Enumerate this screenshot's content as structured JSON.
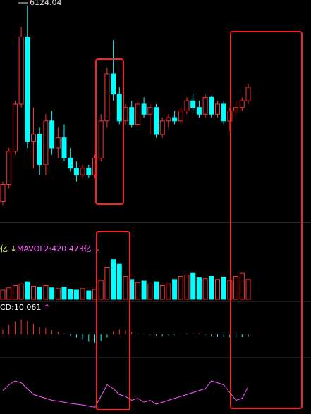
{
  "chart_data": {
    "type": "candlestick",
    "high_label": "6124.04",
    "volume_label_1": "亿 ↓",
    "volume_label_2": "MAVOL2:420.473亿 ↓",
    "macd_label": "CD:10.061",
    "macd_arrow": "↑",
    "up_color": "#ff3232",
    "down_color": "#00ffff",
    "ylim": [
      2900,
      6200
    ],
    "open": [
      3200,
      3450,
      3950,
      4650,
      5650,
      4100,
      4200,
      3750,
      4400,
      4000,
      4150,
      3850,
      3700,
      3600,
      3700,
      3600,
      3850,
      4400,
      5100,
      4800,
      4400,
      4600,
      4350,
      4650,
      4500,
      4600,
      4200,
      4400,
      4450,
      4400,
      4550,
      4700,
      4600,
      4500,
      4750,
      4500,
      4650,
      4400,
      4550,
      4600,
      4700
    ],
    "high": [
      3500,
      4000,
      4700,
      5800,
      6124.04,
      4600,
      4300,
      4500,
      4550,
      4300,
      4350,
      4000,
      3800,
      3750,
      3750,
      3900,
      4500,
      5200,
      5600,
      4900,
      4650,
      4700,
      4700,
      4750,
      4650,
      4650,
      4450,
      4500,
      4550,
      4600,
      4750,
      4800,
      4700,
      4800,
      4780,
      4700,
      4700,
      4600,
      4700,
      4750,
      4950
    ],
    "low": [
      3150,
      3400,
      3900,
      4600,
      4000,
      3700,
      3600,
      3600,
      3900,
      3850,
      3800,
      3650,
      3500,
      3550,
      3550,
      3550,
      3800,
      4300,
      4700,
      4350,
      4350,
      4300,
      4300,
      4450,
      4200,
      4150,
      4150,
      4300,
      4350,
      4350,
      4500,
      4550,
      4450,
      4450,
      4450,
      4450,
      4350,
      4250,
      4500,
      4550,
      4650
    ],
    "close": [
      3450,
      3950,
      4650,
      5650,
      4100,
      4200,
      3750,
      4400,
      4000,
      4150,
      3850,
      3700,
      3600,
      3700,
      3600,
      3850,
      4400,
      5100,
      4800,
      4400,
      4600,
      4350,
      4650,
      4500,
      4600,
      4200,
      4400,
      4450,
      4400,
      4550,
      4700,
      4600,
      4500,
      4750,
      4500,
      4650,
      4400,
      4550,
      4600,
      4700,
      4900
    ],
    "volume_ylim": [
      0,
      600
    ],
    "volume": [
      120,
      150,
      180,
      200,
      230,
      170,
      160,
      180,
      150,
      140,
      160,
      130,
      120,
      140,
      110,
      130,
      250,
      420,
      520,
      460,
      300,
      260,
      220,
      240,
      200,
      230,
      180,
      200,
      260,
      300,
      320,
      340,
      280,
      270,
      300,
      260,
      290,
      250,
      300,
      340,
      260
    ],
    "macd_ylim": [
      -40,
      40
    ],
    "macd": [
      10,
      18,
      24,
      28,
      26,
      20,
      14,
      12,
      8,
      5,
      2,
      -2,
      -6,
      -10,
      -14,
      -16,
      -12,
      -6,
      6,
      10,
      8,
      4,
      2,
      1,
      -1,
      -2,
      -3,
      -2,
      -1,
      1,
      2,
      3,
      2,
      -1,
      -3,
      -4,
      -5,
      -6,
      -6,
      -5,
      -4
    ],
    "k_ylim": [
      0,
      100
    ],
    "k": [
      55,
      70,
      80,
      75,
      60,
      45,
      40,
      35,
      30,
      28,
      25,
      22,
      20,
      18,
      15,
      12,
      40,
      70,
      60,
      45,
      40,
      30,
      35,
      25,
      30,
      20,
      25,
      30,
      35,
      40,
      45,
      50,
      55,
      60,
      80,
      75,
      70,
      50,
      30,
      35,
      65
    ]
  }
}
